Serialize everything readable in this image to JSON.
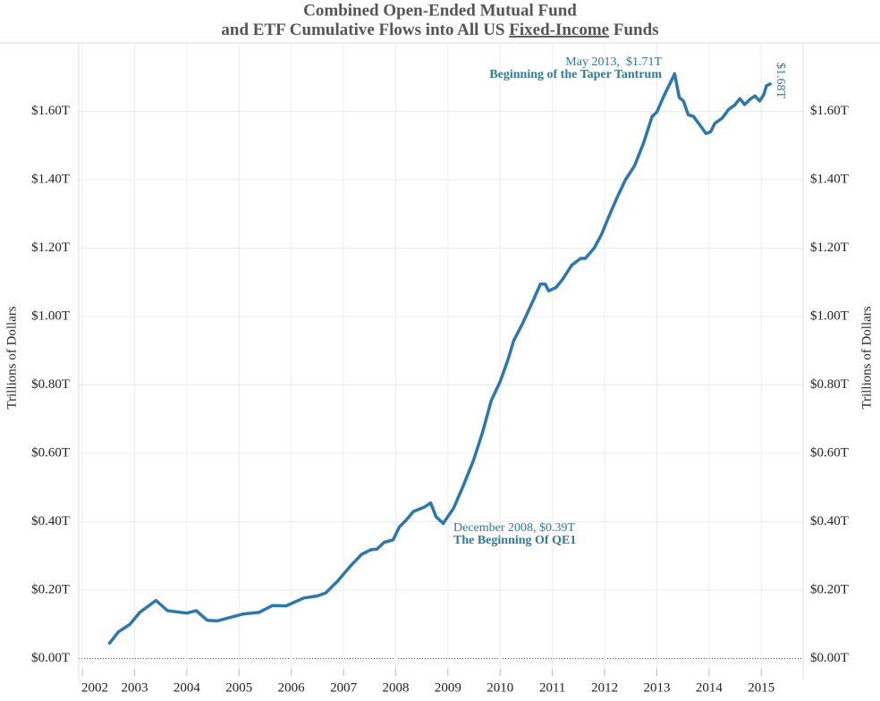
{
  "chart_data": {
    "type": "line",
    "title": {
      "line1": "Combined Open-Ended Mutual Fund",
      "line2": [
        "and ETF Cumulative Flows into All US",
        "Fixed-Income",
        "Funds"
      ]
    },
    "y_label": "Trillions of Dollars",
    "y2_label": "Trillions of Dollars",
    "color": "#2b78b0",
    "grid": true,
    "xlim": [
      2001.93,
      2015.8
    ],
    "xticks": [
      2002,
      2003,
      2004,
      2005,
      2006,
      2007,
      2008,
      2009,
      2010,
      2011,
      2012,
      2013,
      2014,
      2015
    ],
    "ylim": [
      -0.03,
      1.8
    ],
    "yticks": [
      {
        "value": 0,
        "label": "$0.00T"
      },
      {
        "value": 0.2,
        "label": "$0.20T"
      },
      {
        "value": 0.4,
        "label": "$0.40T"
      },
      {
        "value": 0.6,
        "label": "$0.60T"
      },
      {
        "value": 0.8,
        "label": "$0.80T"
      },
      {
        "value": 1.0,
        "label": "$1.00T"
      },
      {
        "value": 1.2,
        "label": "$1.20T"
      },
      {
        "value": 1.4,
        "label": "$1.40T"
      },
      {
        "value": 1.6,
        "label": "$1.60T"
      }
    ],
    "x": [
      2002.52,
      2002.69,
      2002.91,
      2003.1,
      2003.41,
      2003.63,
      2004.0,
      2004.18,
      2004.39,
      2004.58,
      2004.87,
      2005.07,
      2005.38,
      2005.64,
      2005.9,
      2006.24,
      2006.5,
      2006.66,
      2006.89,
      2007.13,
      2007.35,
      2007.52,
      2007.64,
      2007.78,
      2007.95,
      2008.07,
      2008.2,
      2008.34,
      2008.55,
      2008.67,
      2008.77,
      2008.91,
      2009.11,
      2009.28,
      2009.49,
      2009.66,
      2009.83,
      2010.0,
      2010.14,
      2010.26,
      2010.43,
      2010.64,
      2010.77,
      2010.86,
      2010.93,
      2011.07,
      2011.2,
      2011.37,
      2011.54,
      2011.63,
      2011.8,
      2011.94,
      2012.06,
      2012.23,
      2012.4,
      2012.57,
      2012.74,
      2012.91,
      2013.0,
      2013.12,
      2013.31,
      2013.34,
      2013.43,
      2013.51,
      2013.6,
      2013.7,
      2013.8,
      2013.94,
      2014.03,
      2014.11,
      2014.25,
      2014.37,
      2014.49,
      2014.59,
      2014.68,
      2014.8,
      2014.88,
      2014.97,
      2015.05,
      2015.1,
      2015.17
    ],
    "values": [
      0.045,
      0.078,
      0.1,
      0.135,
      0.17,
      0.14,
      0.133,
      0.14,
      0.112,
      0.11,
      0.122,
      0.13,
      0.135,
      0.155,
      0.154,
      0.177,
      0.183,
      0.192,
      0.227,
      0.27,
      0.305,
      0.318,
      0.32,
      0.34,
      0.347,
      0.385,
      0.405,
      0.43,
      0.443,
      0.455,
      0.415,
      0.395,
      0.44,
      0.5,
      0.58,
      0.66,
      0.755,
      0.81,
      0.87,
      0.93,
      0.98,
      1.05,
      1.095,
      1.095,
      1.075,
      1.085,
      1.11,
      1.15,
      1.17,
      1.17,
      1.2,
      1.24,
      1.285,
      1.345,
      1.4,
      1.44,
      1.505,
      1.585,
      1.598,
      1.64,
      1.7,
      1.71,
      1.64,
      1.63,
      1.59,
      1.585,
      1.565,
      1.535,
      1.54,
      1.565,
      1.58,
      1.605,
      1.618,
      1.637,
      1.62,
      1.637,
      1.645,
      1.63,
      1.65,
      1.675,
      1.68
    ],
    "annotations": [
      {
        "line1": "May 2013,  $1.71T",
        "line2": "Beginning of the Taper Tantrum"
      },
      {
        "line1": "December 2008, $0.39T",
        "line2": "The Beginning Of QE1"
      }
    ],
    "end_label": "$1.68T"
  }
}
